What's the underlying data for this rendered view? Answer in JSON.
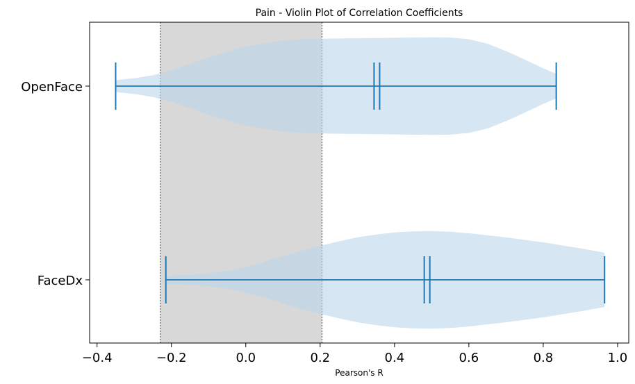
{
  "chart_data": {
    "type": "violin",
    "orientation": "horizontal",
    "title": "Pain - Violin Plot of Correlation Coefficients",
    "xlabel": "Pearson's R",
    "ylabel": "",
    "xlim": [
      -0.42,
      1.03
    ],
    "x_ticks": [
      -0.4,
      -0.2,
      0.0,
      0.2,
      0.4,
      0.6,
      0.8,
      1.0
    ],
    "x_tick_labels": [
      "−0.4",
      "−0.2",
      "0.0",
      "0.2",
      "0.4",
      "0.6",
      "0.8",
      "1.0"
    ],
    "grid": false,
    "shaded_band": {
      "x_start": -0.23,
      "x_end": 0.205,
      "color": "#d8d8d8",
      "border_style": "dotted",
      "border_color": "#808080"
    },
    "colors": {
      "violin_fill": "#bad6e9",
      "stats_line": "#1f77b4"
    },
    "categories": [
      "OpenFace",
      "FaceDx"
    ],
    "series": [
      {
        "category": "OpenFace",
        "min": -0.35,
        "max": 0.835,
        "mean": 0.345,
        "median": 0.36,
        "density_profile": [
          [
            -0.35,
            0.12
          ],
          [
            -0.3,
            0.16
          ],
          [
            -0.25,
            0.22
          ],
          [
            -0.2,
            0.32
          ],
          [
            -0.15,
            0.45
          ],
          [
            -0.1,
            0.58
          ],
          [
            -0.05,
            0.7
          ],
          [
            0.0,
            0.8
          ],
          [
            0.05,
            0.87
          ],
          [
            0.1,
            0.92
          ],
          [
            0.15,
            0.95
          ],
          [
            0.2,
            0.96
          ],
          [
            0.3,
            0.97
          ],
          [
            0.4,
            0.98
          ],
          [
            0.5,
            0.99
          ],
          [
            0.55,
            0.985
          ],
          [
            0.6,
            0.95
          ],
          [
            0.65,
            0.86
          ],
          [
            0.7,
            0.71
          ],
          [
            0.75,
            0.54
          ],
          [
            0.8,
            0.36
          ],
          [
            0.835,
            0.25
          ]
        ]
      },
      {
        "category": "FaceDx",
        "min": -0.215,
        "max": 0.965,
        "mean": 0.48,
        "median": 0.495,
        "density_profile": [
          [
            -0.215,
            0.08
          ],
          [
            -0.15,
            0.1
          ],
          [
            -0.1,
            0.13
          ],
          [
            -0.05,
            0.18
          ],
          [
            0.0,
            0.26
          ],
          [
            0.05,
            0.36
          ],
          [
            0.1,
            0.48
          ],
          [
            0.15,
            0.59
          ],
          [
            0.2,
            0.69
          ],
          [
            0.25,
            0.78
          ],
          [
            0.3,
            0.86
          ],
          [
            0.35,
            0.92
          ],
          [
            0.4,
            0.96
          ],
          [
            0.45,
            0.985
          ],
          [
            0.5,
            0.99
          ],
          [
            0.55,
            0.975
          ],
          [
            0.6,
            0.945
          ],
          [
            0.7,
            0.86
          ],
          [
            0.8,
            0.76
          ],
          [
            0.9,
            0.64
          ],
          [
            0.965,
            0.55
          ]
        ]
      }
    ]
  }
}
